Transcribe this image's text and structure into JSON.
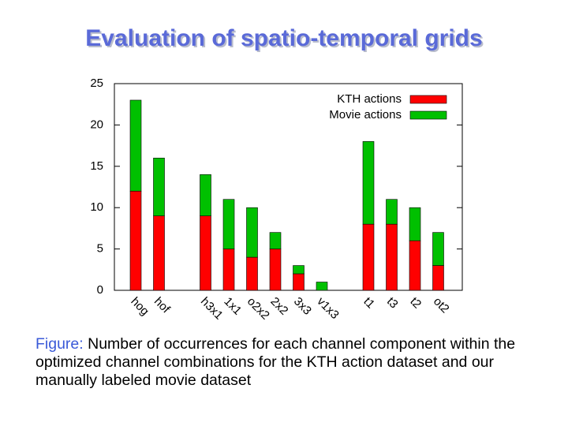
{
  "chart_data": {
    "type": "stacked-bar",
    "title": "Evaluation of spatio-temporal grids",
    "categories": [
      "hog",
      "hof",
      null,
      "h3x1",
      "1x1",
      "o2x2",
      "2x2",
      "3x3",
      "v1x3",
      null,
      "t1",
      "t3",
      "t2",
      "ot2"
    ],
    "series": [
      {
        "name": "KTH actions",
        "color": "#ff0000",
        "values": [
          12,
          9,
          null,
          9,
          5,
          4,
          5,
          2,
          0,
          null,
          8,
          8,
          6,
          3
        ]
      },
      {
        "name": "Movie actions",
        "color": "#00c000",
        "values": [
          11,
          7,
          null,
          5,
          6,
          6,
          2,
          1,
          1,
          null,
          10,
          3,
          4,
          4
        ]
      }
    ],
    "ylim": [
      0,
      25
    ],
    "yticks": [
      0,
      5,
      10,
      15,
      20,
      25
    ],
    "legend": "upper right"
  },
  "caption": {
    "label": "Figure:",
    "text": "Number of occurrences for each channel component within the optimized channel combinations for the KTH action dataset and our manually labeled movie dataset"
  }
}
